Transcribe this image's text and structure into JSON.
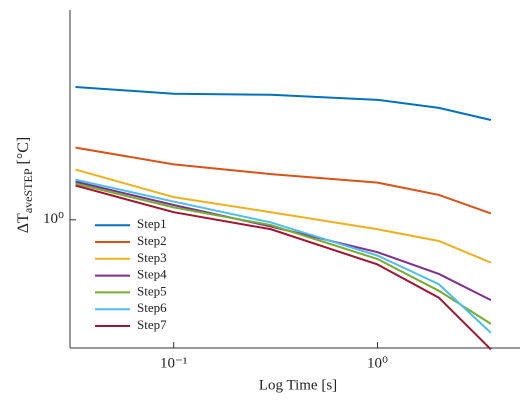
{
  "chart_data": {
    "type": "line",
    "x_label": "Log Time [s]",
    "y_label": {
      "main": "ΔT",
      "sub": "aveSTEP",
      "unit": "[°C]"
    },
    "x_scale": "log",
    "y_scale": "log",
    "x": [
      0.033,
      0.1,
      0.3,
      1,
      2,
      3.6
    ],
    "xlim": [
      0.031,
      5
    ],
    "ylim": [
      0.374,
      5.0
    ],
    "xticks": [
      {
        "value": 0.1,
        "label": "10⁻¹"
      },
      {
        "value": 1,
        "label": "10⁰"
      }
    ],
    "yticks": [
      {
        "value": 1,
        "label": "10⁰"
      }
    ],
    "legend": "lower left",
    "series": [
      {
        "name": "Step1",
        "color": "#0072bd",
        "values": [
          2.77,
          2.63,
          2.61,
          2.51,
          2.36,
          2.15
        ]
      },
      {
        "name": "Step2",
        "color": "#d95319",
        "values": [
          1.74,
          1.53,
          1.42,
          1.33,
          1.21,
          1.05
        ]
      },
      {
        "name": "Step3",
        "color": "#edb120",
        "values": [
          1.47,
          1.19,
          1.06,
          0.93,
          0.85,
          0.72
        ]
      },
      {
        "name": "Step4",
        "color": "#7e2f8e",
        "values": [
          1.34,
          1.12,
          0.95,
          0.78,
          0.66,
          0.54
        ]
      },
      {
        "name": "Step5",
        "color": "#77ac30",
        "values": [
          1.32,
          1.1,
          0.96,
          0.74,
          0.58,
          0.45
        ]
      },
      {
        "name": "Step6",
        "color": "#4dbeee",
        "values": [
          1.36,
          1.15,
          0.98,
          0.76,
          0.61,
          0.42
        ]
      },
      {
        "name": "Step7",
        "color": "#a2142f",
        "values": [
          1.3,
          1.06,
          0.93,
          0.71,
          0.55,
          0.37
        ]
      }
    ]
  }
}
